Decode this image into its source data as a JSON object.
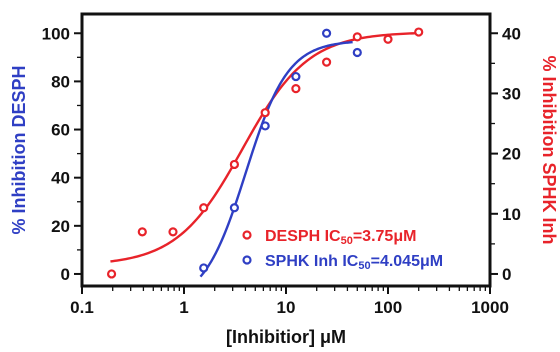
{
  "chart_data": {
    "type": "scatter",
    "xlabel": "[Inhibitior] μM",
    "ylabel_left": "% Inhibition DESPH",
    "ylabel_right": "% Inhibition SPHK  Inh",
    "x_scale": "log",
    "xlim": [
      0.1,
      1000
    ],
    "ylim_left": [
      -5,
      108
    ],
    "ylim_right": [
      -2,
      43.2
    ],
    "x_ticks": [
      "0.1",
      "1",
      "10",
      "100",
      "1000"
    ],
    "y_ticks_left": [
      "0",
      "20",
      "40",
      "60",
      "80",
      "100"
    ],
    "y_ticks_right": [
      "0",
      "10",
      "20",
      "30",
      "40"
    ],
    "grid": false,
    "legend_position": "bottom-right",
    "series": [
      {
        "name": "DESPH IC50=3.75μM",
        "legend": {
          "main": "DESPH IC",
          "sub": "50",
          "rest": "=3.75μM"
        },
        "axis": "left",
        "color": "#e8232a",
        "points": [
          {
            "x": 0.195,
            "y": 0
          },
          {
            "x": 0.39,
            "y": 17.5
          },
          {
            "x": 0.78,
            "y": 17.5
          },
          {
            "x": 1.56,
            "y": 27.5
          },
          {
            "x": 3.12,
            "y": 45.5
          },
          {
            "x": 6.25,
            "y": 67
          },
          {
            "x": 12.5,
            "y": 77
          },
          {
            "x": 25,
            "y": 88
          },
          {
            "x": 50,
            "y": 98.5
          },
          {
            "x": 100,
            "y": 97.5
          },
          {
            "x": 200,
            "y": 100.5
          }
        ],
        "ic50": 3.75
      },
      {
        "name": "SPHK Inh IC50=4.045μM",
        "legend": {
          "main": "SPHK Inh IC",
          "sub": "50",
          "rest": "=4.045μM"
        },
        "axis": "right",
        "color": "#2f3fc4",
        "points": [
          {
            "x": 1.56,
            "y": 1
          },
          {
            "x": 3.12,
            "y": 11
          },
          {
            "x": 6.25,
            "y": 24.6
          },
          {
            "x": 12.5,
            "y": 32.8
          },
          {
            "x": 25,
            "y": 40
          },
          {
            "x": 50,
            "y": 36.8
          }
        ],
        "ic50": 4.045
      }
    ]
  }
}
